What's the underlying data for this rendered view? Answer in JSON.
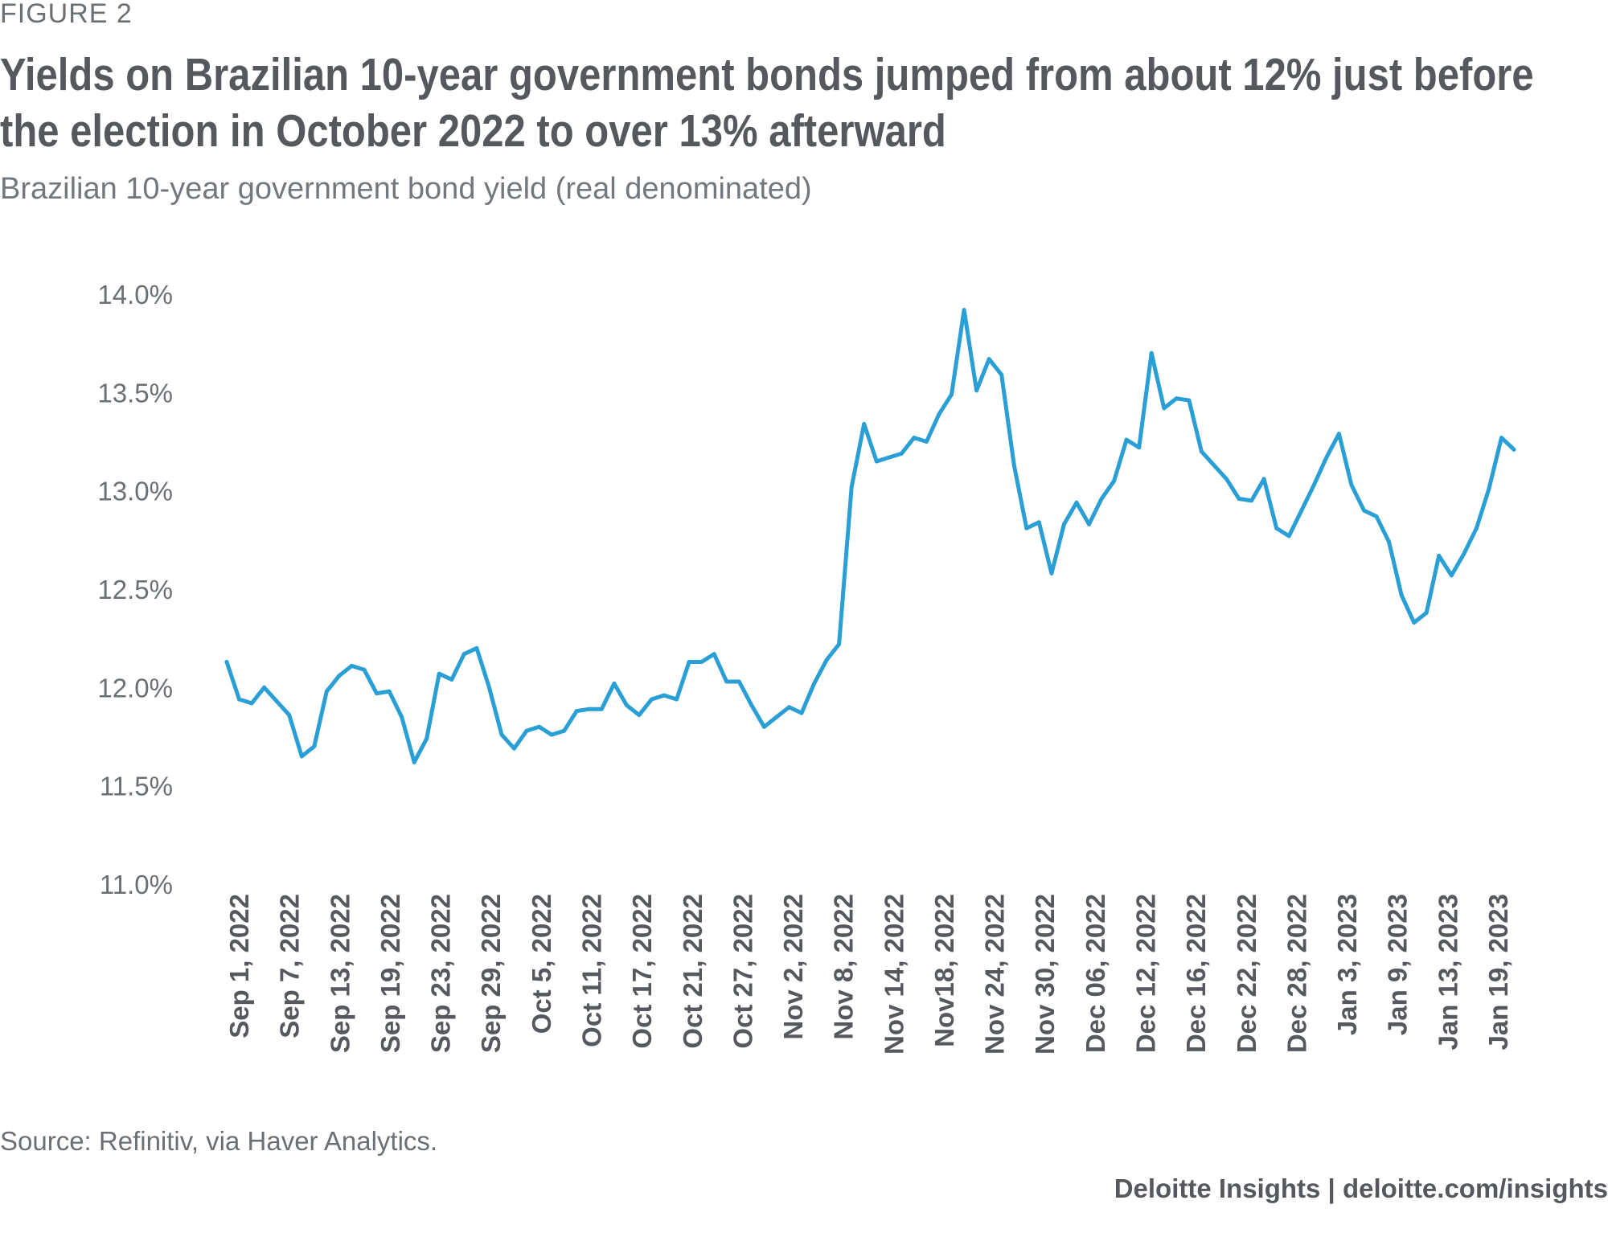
{
  "figure_label": "FIGURE 2",
  "source": "Source: Refinitiv, via Haver Analytics.",
  "credit": {
    "brand": "Deloitte Insights",
    "separator": "|",
    "url": "deloitte.com/insights"
  },
  "colors": {
    "line": "#2a9fd6",
    "text": "#55585d",
    "axis_text": "#6b7075"
  },
  "chart_data": {
    "type": "line",
    "title": "Yields on Brazilian 10-year government bonds jumped from about 12% just before the election in October 2022 to over 13% afterward",
    "title_lines": [
      "Yields on Brazilian 10-year government bonds jumped from about 12% just before",
      "the election in October 2022 to over 13% afterward"
    ],
    "subtitle": "Brazilian 10-year government bond yield (real denominated)",
    "xlabel": "",
    "ylabel": "",
    "ylim": [
      11.0,
      14.0
    ],
    "yticks": [
      11.0,
      11.5,
      12.0,
      12.5,
      13.0,
      13.5,
      14.0
    ],
    "ytick_labels": [
      "11.0%",
      "11.5%",
      "12.0%",
      "12.5%",
      "13.0%",
      "13.5%",
      "14.0%"
    ],
    "grid": false,
    "legend": "none",
    "xtick_labels": [
      "Sep 1, 2022",
      "Sep 7, 2022",
      "Sep 13, 2022",
      "Sep 19, 2022",
      "Sep 23, 2022",
      "Sep 29, 2022",
      "Oct 5, 2022",
      "Oct 11, 2022",
      "Oct 17, 2022",
      "Oct 21, 2022",
      "Oct 27, 2022",
      "Nov 2, 2022",
      "Nov 8, 2022",
      "Nov 14, 2022",
      "Nov18, 2022",
      "Nov 24, 2022",
      "Nov 30, 2022",
      "Dec 06, 2022",
      "Dec 12, 2022",
      "Dec 16, 2022",
      "Dec 22, 2022",
      "Dec 28, 2022",
      "Jan 3, 2023",
      "Jan 9, 2023",
      "Jan 13, 2023",
      "Jan 19, 2023"
    ],
    "series": [
      {
        "values": [
          12.13,
          11.94,
          11.92,
          12.0,
          11.93,
          11.86,
          11.65,
          11.7,
          11.98,
          12.06,
          12.11,
          12.09,
          11.97,
          11.98,
          11.85,
          11.62,
          11.74,
          12.07,
          12.04,
          12.17,
          12.2,
          12.0,
          11.76,
          11.69,
          11.78,
          11.8,
          11.76,
          11.78,
          11.88,
          11.89,
          11.89,
          12.02,
          11.91,
          11.86,
          11.94,
          11.96,
          11.94,
          12.13,
          12.13,
          12.17,
          12.03,
          12.03,
          11.91,
          11.8,
          11.85,
          11.9,
          11.87,
          12.02,
          12.14,
          12.22,
          13.02,
          13.34,
          13.15,
          13.17,
          13.19,
          13.27,
          13.25,
          13.39,
          13.49,
          13.92,
          13.51,
          13.67,
          13.59,
          13.13,
          12.81,
          12.84,
          12.58,
          12.83,
          12.94,
          12.83,
          12.96,
          13.05,
          13.26,
          13.22,
          13.7,
          13.42,
          13.47,
          13.46,
          13.2,
          13.13,
          13.06,
          12.96,
          12.95,
          13.06,
          12.81,
          12.77,
          12.9,
          13.03,
          13.17,
          13.29,
          13.03,
          12.9,
          12.87,
          12.74,
          12.47,
          12.33,
          12.38,
          12.67,
          12.57,
          12.68,
          12.81,
          13.01,
          13.27,
          13.21
        ]
      }
    ]
  }
}
